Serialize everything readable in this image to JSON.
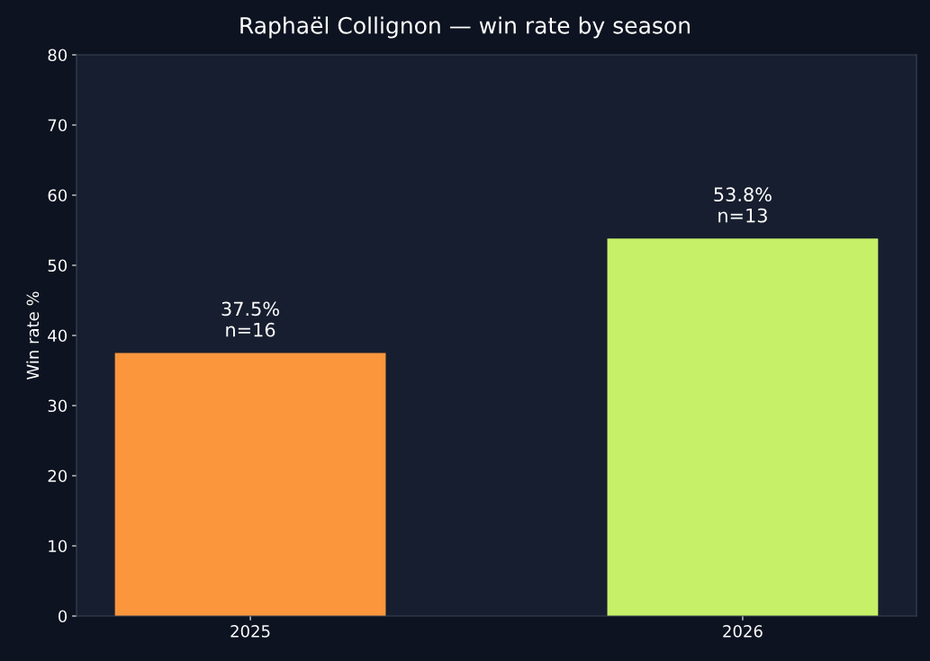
{
  "chart_data": {
    "type": "bar",
    "title": "Raphaël Collignon — win rate by season",
    "ylabel": "Win rate %",
    "categories": [
      "2025",
      "2026"
    ],
    "values": [
      37.5,
      53.8
    ],
    "colors": [
      "#fb963d",
      "#c5f068"
    ],
    "value_labels": [
      "37.5%\nn=16",
      "53.8%\nn=13"
    ],
    "ylim": [
      0,
      80
    ],
    "yticks": [
      0,
      10,
      20,
      30,
      40,
      50,
      60,
      70,
      80
    ],
    "grid": false
  }
}
